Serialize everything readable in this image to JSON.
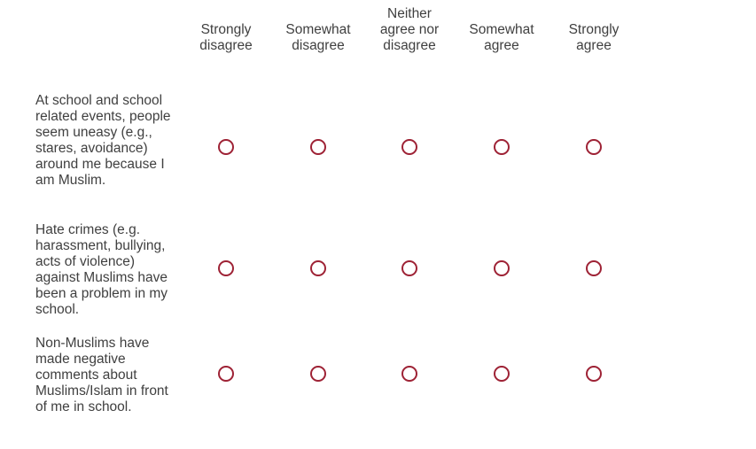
{
  "scale": {
    "options": [
      "Strongly\ndisagree",
      "Somewhat\ndisagree",
      "Neither\nagree nor\ndisagree",
      "Somewhat\nagree",
      "Strongly\nagree"
    ]
  },
  "questions": [
    {
      "label": "At school and school related events, people seem uneasy (e.g., stares, avoidance) around me because I am Muslim.",
      "selected": null
    },
    {
      "label": "Hate crimes (e.g. harassment, bullying, acts of violence) against Muslims have been a problem in my school.",
      "selected": null
    },
    {
      "label": "Non-Muslims have made negative comments about Muslims/Islam in front of me in school.",
      "selected": null
    }
  ],
  "colors": {
    "radio_border": "#9e2235",
    "text": "#404040"
  }
}
